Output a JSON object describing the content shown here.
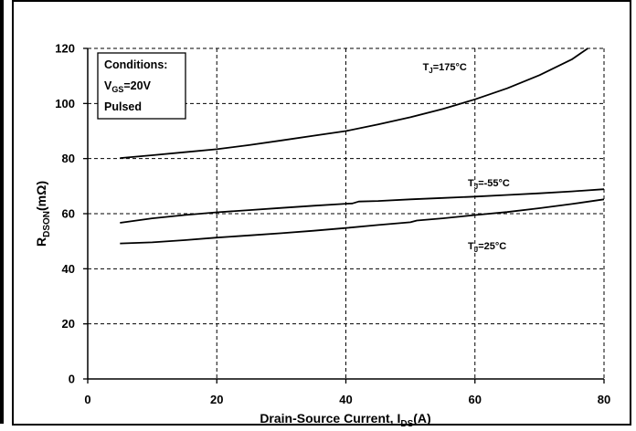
{
  "chart_data": {
    "type": "line",
    "title": "",
    "xlabel": {
      "main": "Drain-Source Current, I",
      "sub": "DS",
      "unit": "(A)"
    },
    "ylabel": {
      "main": "R",
      "sub": "DSON",
      "unit": "(mΩ)"
    },
    "xlim": [
      0,
      80
    ],
    "ylim": [
      0,
      120
    ],
    "xticks": [
      0,
      20,
      40,
      60,
      80
    ],
    "yticks": [
      0,
      20,
      40,
      60,
      80,
      100,
      120
    ],
    "grid": "dashed",
    "conditions": {
      "title": "Conditions:",
      "vgs": {
        "main": "V",
        "sub": "GS",
        "value": "=20V"
      },
      "mode": "Pulsed"
    },
    "series": [
      {
        "name": "T=175°C",
        "label": {
          "main": "T",
          "sub": "J",
          "value": "=175°C"
        },
        "x": [
          5,
          10,
          15,
          20,
          25,
          30,
          35,
          40,
          45,
          50,
          55,
          60,
          65,
          70,
          75,
          77.5
        ],
        "y": [
          80.2,
          81.2,
          82.3,
          83.4,
          84.9,
          86.6,
          88.3,
          90,
          92.4,
          95,
          98,
          101.5,
          105.5,
          110.3,
          116,
          120
        ]
      },
      {
        "name": "T=-55°C",
        "label": {
          "main": "T",
          "sub": "J",
          "value": "=-55°C"
        },
        "x": [
          5,
          10,
          15,
          20,
          25,
          30,
          35,
          40,
          41,
          42,
          45,
          50,
          55,
          60,
          65,
          70,
          75,
          80
        ],
        "y": [
          56.7,
          58.3,
          59.5,
          60.5,
          61.3,
          62.1,
          62.9,
          63.6,
          63.7,
          64.4,
          64.6,
          65.2,
          65.7,
          66.2,
          66.8,
          67.4,
          68.1,
          68.9
        ]
      },
      {
        "name": "T=25°C",
        "label": {
          "main": "T",
          "sub": "J",
          "value": "=25°C"
        },
        "x": [
          5,
          10,
          15,
          20,
          25,
          30,
          35,
          40,
          45,
          50,
          51,
          55,
          60,
          65,
          70,
          75,
          80
        ],
        "y": [
          49.2,
          49.6,
          50.4,
          51.3,
          52.1,
          52.9,
          53.8,
          54.8,
          55.9,
          56.9,
          57.5,
          58.3,
          59.5,
          60.6,
          62,
          63.5,
          65.2
        ]
      }
    ]
  }
}
